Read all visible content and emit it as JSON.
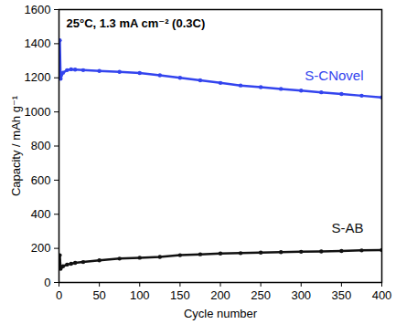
{
  "chart_data": {
    "type": "line",
    "annotations": [
      "25°C, 1.3 mA cm⁻² (0.3C)"
    ],
    "x_label": "Cycle number",
    "y_label": "Capacity / mAh g⁻¹",
    "x": [
      1,
      2,
      5,
      10,
      15,
      20,
      30,
      50,
      75,
      100,
      125,
      150,
      175,
      200,
      225,
      250,
      275,
      300,
      325,
      350,
      375,
      400
    ],
    "series": [
      {
        "name": "S-CNovel",
        "color": "#3344ee",
        "marker": "circle",
        "values": [
          1420,
          1195,
          1230,
          1245,
          1250,
          1248,
          1245,
          1240,
          1235,
          1228,
          1215,
          1200,
          1185,
          1170,
          1155,
          1145,
          1135,
          1125,
          1115,
          1105,
          1095,
          1085
        ]
      },
      {
        "name": "S-AB",
        "color": "#111111",
        "marker": "circle",
        "values": [
          160,
          80,
          95,
          105,
          110,
          115,
          120,
          130,
          140,
          145,
          150,
          160,
          165,
          170,
          172,
          175,
          178,
          180,
          182,
          185,
          188,
          190
        ]
      }
    ],
    "xlim": [
      0,
      400
    ],
    "xticks": [
      0,
      50,
      100,
      150,
      200,
      250,
      300,
      350,
      400
    ],
    "ylim": [
      0,
      1600
    ],
    "yticks": [
      0,
      200,
      400,
      600,
      800,
      1000,
      1200,
      1400,
      1600
    ],
    "grid": false
  }
}
